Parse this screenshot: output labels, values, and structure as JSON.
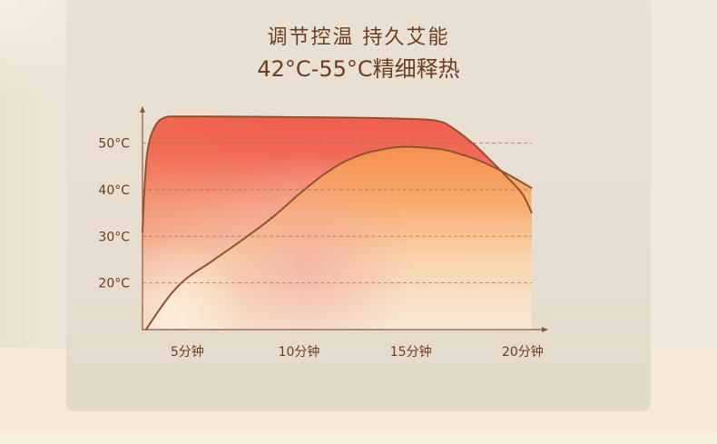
{
  "title": {
    "line1": "调节控温 持久艾能",
    "line2": "42°C-55°C精细释热"
  },
  "colors": {
    "text": "#6b3d21",
    "curve": "#8b5333",
    "axis": "#8a5a3c",
    "grid": "#a66f4a",
    "card": "#e7ded1",
    "page": "#f5eada"
  },
  "chart_data": {
    "type": "area",
    "xlim": [
      3,
      21.1
    ],
    "ylim": [
      10,
      57.5
    ],
    "grid": true,
    "xticks": [
      {
        "value": 5,
        "label": "5分钟"
      },
      {
        "value": 10,
        "label": "10分钟"
      },
      {
        "value": 15,
        "label": "15分钟"
      },
      {
        "value": 20,
        "label": "20分钟"
      }
    ],
    "yticks": [
      {
        "value": 50,
        "label": "50°C"
      },
      {
        "value": 40,
        "label": "40°C"
      },
      {
        "value": 30,
        "label": "30°C"
      },
      {
        "value": 20,
        "label": "20°C"
      }
    ],
    "series": [
      {
        "color": "#ef5e4d",
        "x": [
          3.0,
          3.08,
          3.2,
          3.45,
          3.8,
          4.2,
          6.0,
          8.8,
          12.9,
          15.8,
          16.4,
          17.0,
          17.8,
          18.6,
          19.4,
          20.0,
          20.4
        ],
        "y": [
          31.0,
          39.5,
          47.5,
          52.5,
          55.0,
          55.7,
          55.7,
          55.6,
          55.4,
          55.0,
          54.5,
          52.8,
          49.8,
          46.1,
          42.2,
          39.0,
          35.1
        ]
      },
      {
        "color": "#f5914f",
        "x": [
          3.16,
          3.73,
          4.34,
          4.95,
          5.96,
          7.6,
          8.82,
          10.04,
          11.06,
          12.07,
          13.29,
          14.71,
          16.13,
          17.75,
          19.17,
          20.39
        ],
        "y": [
          10.0,
          14.1,
          18.0,
          20.9,
          24.2,
          29.7,
          34.1,
          39.2,
          43.1,
          46.1,
          48.2,
          49.2,
          48.8,
          46.8,
          43.7,
          40.4
        ]
      }
    ]
  }
}
